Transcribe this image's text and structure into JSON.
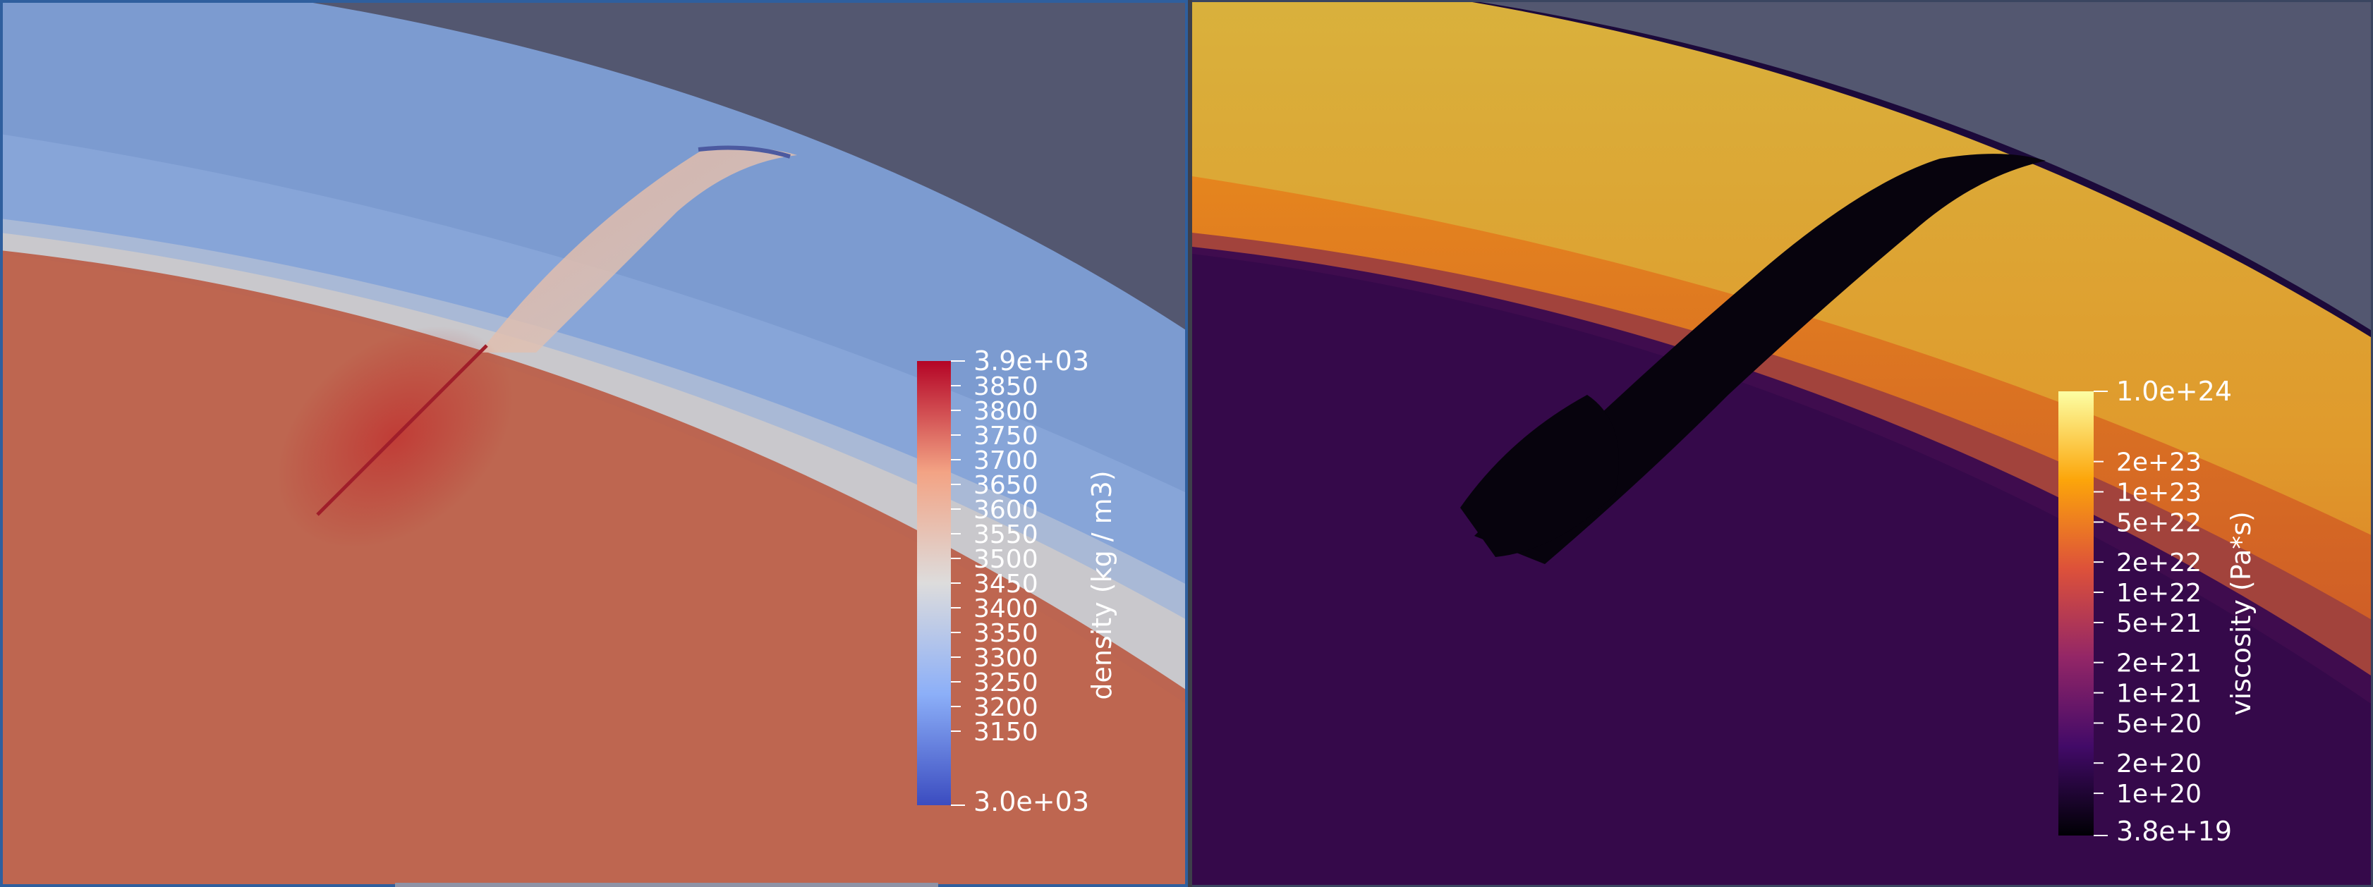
{
  "viewports": [
    {
      "id": "left",
      "scalar_bar": {
        "title": "density (kg / m3)",
        "max_label": "3.9e+03",
        "min_label": "3.0e+03",
        "range": [
          3000,
          3900
        ],
        "tick_labels": [
          "3850",
          "3800",
          "3750",
          "3700",
          "3650",
          "3600",
          "3550",
          "3500",
          "3450",
          "3400",
          "3350",
          "3300",
          "3250",
          "3200",
          "3150"
        ],
        "colormap": "Cool to Warm",
        "colors": [
          "#3b4cc0",
          "#8caff8",
          "#dddcdc",
          "#f3a384",
          "#b40426"
        ]
      }
    },
    {
      "id": "right",
      "scalar_bar": {
        "title": "viscosity (Pa*s)",
        "max_label": "1.0e+24",
        "min_label": "3.8e+19",
        "scale": "log",
        "range": [
          3.8e+19,
          1e+24
        ],
        "tick_labels": [
          "2e+23",
          "1e+23",
          "5e+22",
          "2e+22",
          "1e+22",
          "5e+21",
          "2e+21",
          "1e+21",
          "5e+20",
          "2e+20",
          "1e+20"
        ],
        "colormap": "Inferno",
        "colors": [
          "#000004",
          "#420a68",
          "#932667",
          "#dd513a",
          "#fca50a",
          "#fcffa4"
        ]
      }
    }
  ]
}
